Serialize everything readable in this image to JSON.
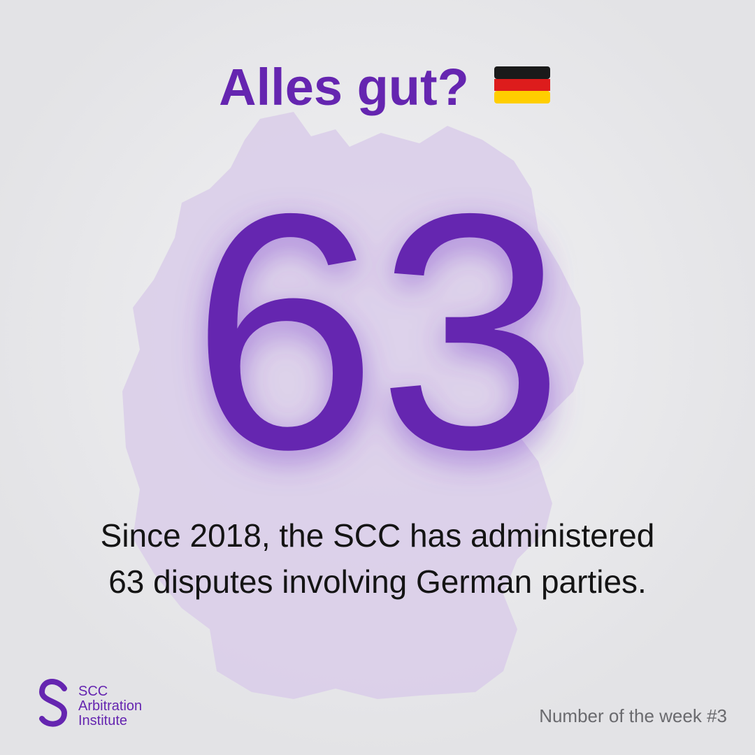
{
  "header": {
    "title": "Alles gut?"
  },
  "highlight": {
    "number": "63"
  },
  "body": {
    "lines": [
      "Since 2018, the SCC has administered",
      "63 disputes involving German parties."
    ]
  },
  "logo": {
    "lines": [
      "SCC",
      "Arbitration",
      "Institute"
    ]
  },
  "footer": {
    "label": "Number of the week #3"
  }
}
